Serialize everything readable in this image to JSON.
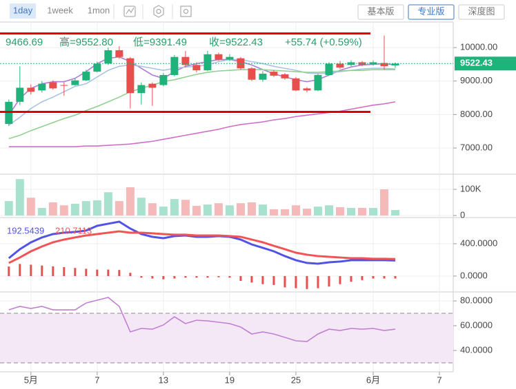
{
  "toolbar": {
    "periods": [
      "1day",
      "1week",
      "1mon"
    ],
    "versions": [
      "基本版",
      "专业版",
      "深度图"
    ]
  },
  "chart_data": [
    {
      "type": "candlestick",
      "info": [
        "9466.69",
        "高=9552.80",
        "低=9391.49",
        "收=9522.43",
        "+55.74 (+0.59%)"
      ],
      "x": [
        -1,
        0,
        1,
        2,
        3,
        4,
        5,
        6,
        7,
        8,
        9,
        10,
        11,
        12,
        13,
        14,
        15,
        16,
        17,
        18,
        19,
        20,
        21,
        22,
        23,
        24,
        25,
        26,
        27,
        28,
        29,
        30,
        31,
        32,
        33,
        34
      ],
      "xlim": [
        -1.8,
        39.25
      ],
      "xticks": [
        {
          "value": 1,
          "label": "5月"
        },
        7,
        13,
        19,
        25,
        {
          "value": 32,
          "label": "6月"
        },
        {
          "value": 38,
          "label": "7"
        }
      ],
      "open": [
        7720,
        8380,
        8800,
        8720,
        8960,
        8880,
        8880,
        9020,
        9280,
        9520,
        9920,
        9680,
        8640,
        8920,
        8880,
        9180,
        9720,
        9480,
        9320,
        9800,
        9640,
        9680,
        9380,
        9040,
        9280,
        9200,
        9080,
        8780,
        8720,
        9180,
        9520,
        9480,
        9560,
        9500,
        9540,
        9466.69
      ],
      "high": [
        8450,
        9440,
        8900,
        9000,
        9020,
        8960,
        9080,
        9340,
        9580,
        10000,
        10040,
        9720,
        8960,
        8960,
        9240,
        9780,
        9900,
        9560,
        9900,
        9850,
        9800,
        9720,
        9420,
        9300,
        9320,
        9240,
        9120,
        8820,
        9220,
        9560,
        9600,
        9620,
        9600,
        9620,
        10360,
        9552.8
      ],
      "low": [
        7660,
        8280,
        8600,
        8660,
        8740,
        8560,
        8860,
        9000,
        9260,
        9480,
        9660,
        8180,
        8300,
        8260,
        8840,
        9140,
        9400,
        9260,
        9300,
        9600,
        9600,
        9340,
        9000,
        8980,
        9120,
        9040,
        8700,
        8660,
        8700,
        9160,
        9360,
        9440,
        9440,
        9460,
        9340,
        9391.49
      ],
      "close": [
        8380,
        8800,
        8680,
        8920,
        8780,
        8860,
        9020,
        9280,
        9520,
        9920,
        9720,
        8640,
        8880,
        8800,
        9180,
        9720,
        9480,
        9320,
        9800,
        9640,
        9720,
        9380,
        9040,
        9220,
        9160,
        9080,
        8720,
        8720,
        9180,
        9520,
        9400,
        9560,
        9480,
        9560,
        9440,
        9522.43
      ],
      "up_color": "#1fb27b",
      "down_color": "#e84e4e",
      "series": [
        {
          "color": "#b07ad6",
          "values": [
            7980,
            8480,
            8780,
            8920,
            8980,
            8980,
            9080,
            9280,
            9520,
            9680,
            9720,
            9580,
            9380,
            9180,
            9080,
            9280,
            9440,
            9520,
            9580,
            9640,
            9640,
            9580,
            9480,
            9340,
            9220,
            9120,
            9040,
            8980,
            9040,
            9180,
            9320,
            9420,
            9480,
            9500,
            9520,
            9480
          ]
        },
        {
          "color": "#a9c3e2",
          "values": [
            7680,
            7920,
            8180,
            8380,
            8520,
            8680,
            8840,
            8920,
            9120,
            9320,
            9440,
            9480,
            9440,
            9380,
            9320,
            9380,
            9420,
            9440,
            9480,
            9580,
            9640,
            9640,
            9580,
            9520,
            9440,
            9380,
            9320,
            9240,
            9220,
            9240,
            9280,
            9320,
            9360,
            9380,
            9380,
            9360
          ]
        },
        {
          "color": "#90d090",
          "values": [
            7280,
            7380,
            7520,
            7640,
            7760,
            7880,
            7980,
            8120,
            8240,
            8380,
            8520,
            8680,
            8780,
            8880,
            8980,
            9040,
            9120,
            9200,
            9260,
            9300,
            9320,
            9340,
            9340,
            9340,
            9320,
            9300,
            9280,
            9260,
            9260,
            9280,
            9300,
            9320,
            9320,
            9340,
            9340,
            9340
          ]
        },
        {
          "color": "#d06ec6",
          "values": [
            7040,
            7040,
            7040,
            7040,
            7040,
            7040,
            7040,
            7060,
            7060,
            7080,
            7100,
            7120,
            7160,
            7200,
            7260,
            7320,
            7380,
            7440,
            7500,
            7560,
            7640,
            7700,
            7740,
            7780,
            7840,
            7880,
            7940,
            7980,
            8020,
            8060,
            8100,
            8160,
            8220,
            8280,
            8320,
            8380
          ]
        }
      ],
      "hlines": {
        "values": [
          10420,
          8080
        ],
        "color": "#e00000"
      },
      "ylim": [
        6280,
        10680
      ],
      "yticks": [
        {
          "value": 10000,
          "label": "10000.00"
        },
        {
          "value": 9000,
          "label": "9000.00"
        },
        {
          "value": 8000,
          "label": "8000.00"
        },
        {
          "value": 7000,
          "label": "7000.00"
        }
      ],
      "grid": true
    },
    {
      "type": "volume",
      "values": [
        55000,
        139000,
        68000,
        29000,
        50000,
        39000,
        45000,
        55000,
        58000,
        89000,
        55000,
        108000,
        68000,
        47000,
        34000,
        63000,
        60000,
        37000,
        42000,
        47000,
        39000,
        47000,
        50000,
        42000,
        24000,
        24000,
        39000,
        26000,
        34000,
        39000,
        32000,
        29000,
        29000,
        29000,
        100000,
        21000
      ],
      "up_color": "#a8e2cf",
      "down_color": "#f6b9b9",
      "ylim": [
        0,
        150000
      ],
      "yticks": [
        {
          "value": 100000,
          "label": "100K"
        },
        0
      ],
      "grid": true
    },
    {
      "type": "macd",
      "series": [
        {
          "color": "#5252e6",
          "values": [
            221,
            332,
            417,
            477,
            519,
            536,
            545,
            562,
            621,
            647,
            672,
            587,
            519,
            485,
            468,
            494,
            502,
            485,
            485,
            494,
            485,
            451,
            391,
            349,
            306,
            247,
            196,
            162,
            153,
            170,
            179,
            196,
            196,
            196,
            196,
            192.5439
          ]
        },
        {
          "color": "#f05454",
          "values": [
            162,
            230,
            306,
            366,
            417,
            451,
            477,
            502,
            519,
            536,
            553,
            536,
            536,
            528,
            519,
            511,
            511,
            502,
            502,
            502,
            494,
            485,
            451,
            417,
            374,
            332,
            289,
            264,
            247,
            238,
            230,
            221,
            221,
            213,
            213,
            210.7113
          ]
        }
      ],
      "histogram": {
        "color": "#e84e4e",
        "values": [
          118,
          150,
          140,
          130,
          120,
          110,
          100,
          90,
          80,
          80,
          75,
          40,
          -20,
          -30,
          -40,
          -30,
          -20,
          -20,
          -20,
          -15,
          -20,
          -60,
          -80,
          -100,
          -110,
          -140,
          -150,
          -160,
          -150,
          -130,
          -100,
          -70,
          -50,
          -30,
          -30,
          -30
        ]
      },
      "ylim": [
        -179,
        706
      ],
      "yticks": [
        {
          "value": 400,
          "label": "400.0000"
        },
        {
          "value": 0,
          "label": "0.0000"
        }
      ],
      "grid": true
    },
    {
      "type": "line",
      "series": [
        {
          "color": "#c27fd2",
          "values": [
            72.8,
            75.6,
            73.9,
            75.6,
            72.8,
            72.8,
            72.8,
            78.3,
            80.6,
            82.8,
            75.6,
            55,
            57.8,
            57.2,
            60.6,
            67.2,
            61.7,
            64.4,
            63.9,
            62.8,
            61.7,
            58.9,
            53.3,
            55,
            53.3,
            50.6,
            47.8,
            47.2,
            53.3,
            57.2,
            56.1,
            57.8,
            57.2,
            57.8,
            56.1,
            57.2
          ]
        }
      ],
      "bands": {
        "values": [
          70,
          30
        ],
        "fill": "#f4e8f6"
      },
      "ylim": [
        22.8,
        86.7
      ],
      "yticks": [
        {
          "value": 80,
          "label": "80.0000"
        },
        {
          "value": 60,
          "label": "60.0000"
        },
        {
          "value": 40,
          "label": "40.0000"
        }
      ],
      "grid": true
    }
  ]
}
